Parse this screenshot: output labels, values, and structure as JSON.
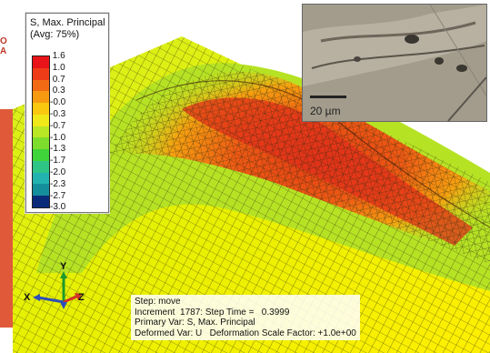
{
  "legend": {
    "title_line1": "S, Max. Principal",
    "title_line2": "(Avg: 75%)",
    "ticks": [
      "1.6",
      "1.0",
      "0.7",
      "0.3",
      "-0.0",
      "-0.3",
      "-0.7",
      "-1.0",
      "-1.3",
      "-1.7",
      "-2.0",
      "-2.3",
      "-2.7",
      "-3.0"
    ],
    "colors": [
      "#e8141a",
      "#ee3c18",
      "#f36a14",
      "#f79a12",
      "#fbc810",
      "#f0e818",
      "#b9e625",
      "#7edc2c",
      "#3ed43a",
      "#2ec486",
      "#22b3b0",
      "#158e9c",
      "#0a2a7a"
    ]
  },
  "step_info": {
    "line1": "Step: move",
    "line2": "Increment  1787: Step Time =   0.3999",
    "line3": "Primary Var: S, Max. Principal",
    "line4": "Deformed Var: U   Deformation Scale Factor: +1.0e+00"
  },
  "inset": {
    "scale_bar_label": "20 µm"
  },
  "axes": {
    "x_label": "X",
    "y_label": "Y",
    "z_label": "Z"
  },
  "side_marks": {
    "letters": "O\nA"
  }
}
